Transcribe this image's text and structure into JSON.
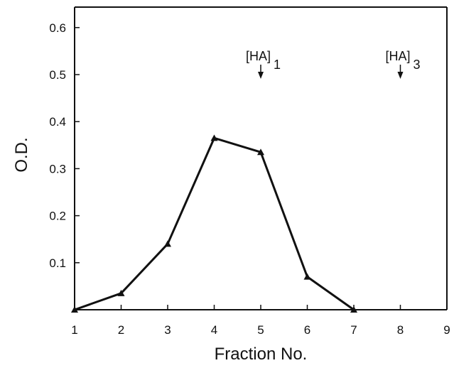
{
  "chart_data": {
    "type": "line",
    "title": "",
    "xlabel": "Fraction No.",
    "ylabel": "O.D.",
    "xlim": [
      1,
      9
    ],
    "ylim": [
      0,
      0.65
    ],
    "x_ticks": [
      1,
      2,
      3,
      4,
      5,
      6,
      7,
      8,
      9
    ],
    "x_tick_labels": [
      "1",
      "2",
      "3",
      "4",
      "5",
      "6",
      "7",
      "8",
      "9"
    ],
    "y_ticks": [
      0.1,
      0.2,
      0.3,
      0.4,
      0.5,
      0.6
    ],
    "y_tick_labels": [
      "0.1",
      "0.2",
      "0.3",
      "0.4",
      "0.5",
      "0.6"
    ],
    "grid": false,
    "series": [
      {
        "marker": "triangle",
        "color": "#111111",
        "x": [
          1,
          2,
          3,
          4,
          5,
          6,
          7
        ],
        "y": [
          0.0,
          0.035,
          0.14,
          0.365,
          0.335,
          0.07,
          0.0
        ]
      }
    ],
    "annotations": [
      {
        "base": "[HA]",
        "sub": "1",
        "x": 5,
        "label": "[HA]1"
      },
      {
        "base": "[HA]",
        "sub": "3",
        "x": 8,
        "label": "[HA]3"
      }
    ]
  }
}
